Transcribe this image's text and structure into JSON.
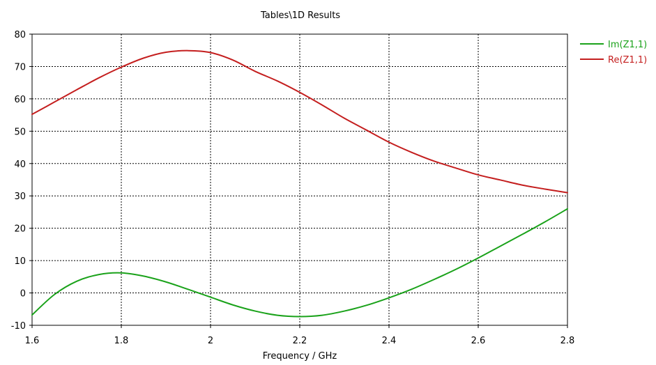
{
  "chart_data": {
    "type": "line",
    "title": "Tables\\1D Results",
    "xlabel": "Frequency / GHz",
    "ylabel": "",
    "xlim": [
      1.6,
      2.8
    ],
    "ylim": [
      -10,
      80
    ],
    "xticks": [
      1.6,
      1.8,
      2,
      2.2,
      2.4,
      2.6,
      2.8
    ],
    "xtick_labels": [
      "1.6",
      "1.8",
      "2",
      "2.2",
      "2.4",
      "2.6",
      "2.8"
    ],
    "yticks": [
      -10,
      0,
      10,
      20,
      30,
      40,
      50,
      60,
      70,
      80
    ],
    "ytick_labels": [
      "-10",
      "0",
      "10",
      "20",
      "30",
      "40",
      "50",
      "60",
      "70",
      "80"
    ],
    "grid": true,
    "legend_position": "top-right-outside",
    "series": [
      {
        "name": "Im(Z1,1)",
        "color": "#1aa21a",
        "x": [
          1.6,
          1.65,
          1.7,
          1.75,
          1.8,
          1.85,
          1.9,
          1.95,
          2.0,
          2.05,
          2.1,
          2.15,
          2.2,
          2.25,
          2.3,
          2.35,
          2.4,
          2.45,
          2.5,
          2.55,
          2.6,
          2.65,
          2.7,
          2.75,
          2.8
        ],
        "y": [
          -6.8,
          -0.5,
          3.6,
          5.7,
          6.2,
          5.2,
          3.4,
          1.1,
          -1.3,
          -3.7,
          -5.6,
          -6.9,
          -7.3,
          -6.9,
          -5.6,
          -3.8,
          -1.5,
          1.1,
          4.1,
          7.3,
          10.8,
          14.5,
          18.2,
          22.0,
          26.0
        ]
      },
      {
        "name": "Re(Z1,1)",
        "color": "#c41e1e",
        "x": [
          1.6,
          1.65,
          1.7,
          1.75,
          1.8,
          1.85,
          1.9,
          1.95,
          2.0,
          2.05,
          2.1,
          2.15,
          2.2,
          2.25,
          2.3,
          2.35,
          2.4,
          2.45,
          2.5,
          2.55,
          2.6,
          2.65,
          2.7,
          2.75,
          2.8
        ],
        "y": [
          55.2,
          59.0,
          62.8,
          66.5,
          69.8,
          72.6,
          74.4,
          74.9,
          74.3,
          72.0,
          68.5,
          65.5,
          62.0,
          58.1,
          54.0,
          50.3,
          46.6,
          43.5,
          40.8,
          38.6,
          36.5,
          34.9,
          33.3,
          32.1,
          31.0
        ]
      }
    ]
  }
}
